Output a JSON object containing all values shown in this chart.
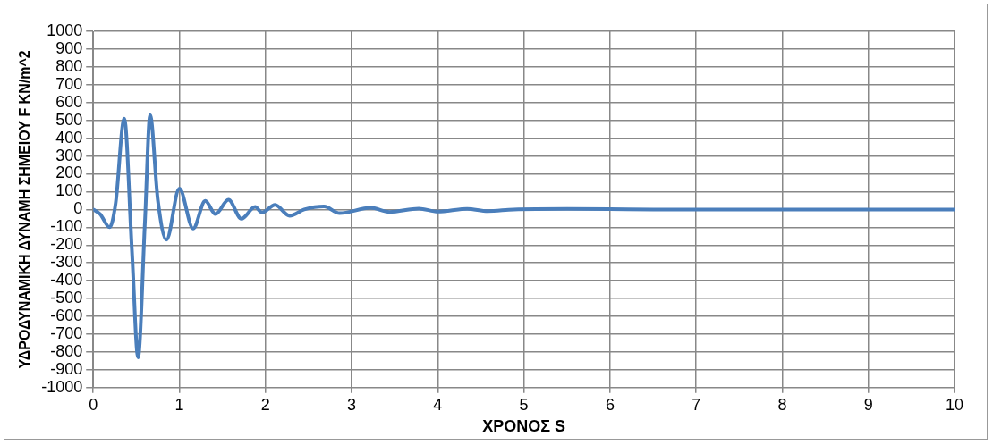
{
  "chart_data": {
    "type": "line",
    "xlabel": "ΧΡΟΝΟΣ S",
    "ylabel": "ΥΔΡΟΔΥΝΑΜΙΚΗ ΔΥΝΑΜΗ ΣΗΜΕΙΟΥ F KN/m^2",
    "x": [
      0,
      0.08,
      0.19,
      0.26,
      0.36,
      0.45,
      0.52,
      0.6,
      0.66,
      0.75,
      0.85,
      1.0,
      1.16,
      1.3,
      1.42,
      1.57,
      1.72,
      1.88,
      1.96,
      2.11,
      2.28,
      2.45,
      2.68,
      2.86,
      3.22,
      3.44,
      3.78,
      4.0,
      4.34,
      4.58,
      4.88,
      5.5,
      6.0,
      6.5,
      7,
      8,
      9,
      10
    ],
    "series": [
      {
        "color": "#4a7ebb",
        "values": [
          0,
          -26,
          -100,
          36,
          510,
          -240,
          -830,
          -70,
          530,
          52,
          -170,
          117,
          -107,
          48,
          -26,
          55,
          -52,
          14,
          -17,
          26,
          -35,
          0,
          17,
          -21,
          9,
          -14,
          5,
          -12,
          3,
          -9,
          0,
          3,
          2,
          0,
          0,
          0,
          0,
          0
        ]
      }
    ],
    "xlim": [
      0,
      10
    ],
    "xticks": [
      0,
      1,
      2,
      3,
      4,
      5,
      6,
      7,
      8,
      9,
      10
    ],
    "ylim": [
      -1000,
      1000
    ],
    "yticks": [
      -1000,
      -900,
      -800,
      -700,
      -600,
      -500,
      -400,
      -300,
      -200,
      -100,
      0,
      100,
      200,
      300,
      400,
      500,
      600,
      700,
      800,
      900,
      1000
    ],
    "grid": true,
    "legend": false,
    "marker": "none",
    "line_style": "solid"
  }
}
